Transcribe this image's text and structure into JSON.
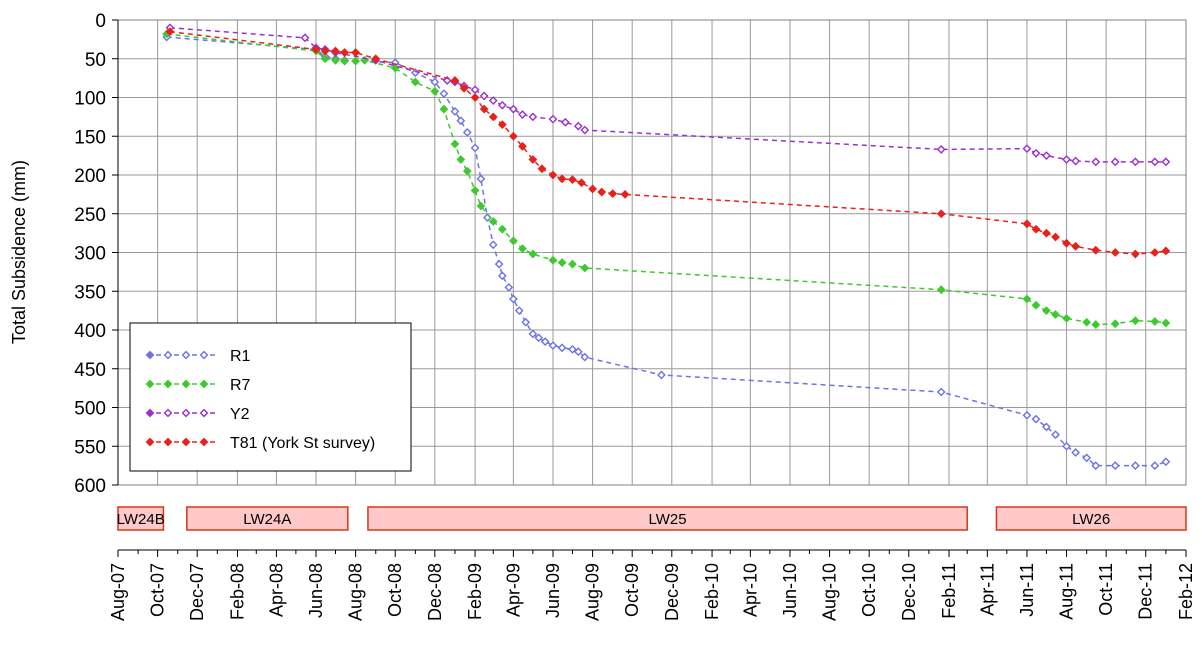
{
  "chart_data": {
    "type": "line",
    "ylabel": "Total Subsidence (mm)",
    "y_inverted": true,
    "ylim": [
      0,
      600
    ],
    "y_ticks": [
      "0",
      "50",
      "100",
      "150",
      "200",
      "250",
      "300",
      "350",
      "400",
      "450",
      "500",
      "550",
      "600"
    ],
    "x_range": [
      "2007-08-01",
      "2012-02-01"
    ],
    "x_ticks": [
      "Aug-07",
      "Oct-07",
      "Dec-07",
      "Feb-08",
      "Apr-08",
      "Jun-08",
      "Aug-08",
      "Oct-08",
      "Dec-08",
      "Feb-09",
      "Apr-09",
      "Jun-09",
      "Aug-09",
      "Oct-09",
      "Dec-09",
      "Feb-10",
      "Apr-10",
      "Jun-10",
      "Aug-10",
      "Oct-10",
      "Dec-10",
      "Feb-11",
      "Apr-11",
      "Jun-11",
      "Aug-11",
      "Oct-11",
      "Dec-11",
      "Feb-12"
    ],
    "grid": true,
    "legend_position": "lower-left",
    "series": [
      {
        "name": "R1",
        "color": "#6b73e6",
        "marker": "open-diamond",
        "points": [
          [
            "2007-10-15",
            22
          ],
          [
            "2008-06-01",
            38
          ],
          [
            "2008-06-15",
            47
          ],
          [
            "2008-07-01",
            50
          ],
          [
            "2008-07-15",
            52
          ],
          [
            "2008-10-01",
            55
          ],
          [
            "2008-11-01",
            68
          ],
          [
            "2008-12-01",
            80
          ],
          [
            "2008-12-15",
            95
          ],
          [
            "2009-01-01",
            118
          ],
          [
            "2009-01-10",
            130
          ],
          [
            "2009-01-20",
            145
          ],
          [
            "2009-02-01",
            165
          ],
          [
            "2009-02-10",
            205
          ],
          [
            "2009-02-20",
            255
          ],
          [
            "2009-03-01",
            290
          ],
          [
            "2009-03-10",
            315
          ],
          [
            "2009-03-15",
            330
          ],
          [
            "2009-03-25",
            345
          ],
          [
            "2009-04-01",
            360
          ],
          [
            "2009-04-10",
            375
          ],
          [
            "2009-04-20",
            390
          ],
          [
            "2009-05-01",
            405
          ],
          [
            "2009-05-10",
            410
          ],
          [
            "2009-05-20",
            415
          ],
          [
            "2009-06-01",
            420
          ],
          [
            "2009-06-15",
            423
          ],
          [
            "2009-07-01",
            425
          ],
          [
            "2009-07-10",
            428
          ],
          [
            "2009-07-20",
            435
          ],
          [
            "2009-11-15",
            458
          ],
          [
            "2011-01-20",
            480
          ],
          [
            "2011-06-01",
            510
          ],
          [
            "2011-06-15",
            515
          ],
          [
            "2011-07-01",
            525
          ],
          [
            "2011-07-15",
            535
          ],
          [
            "2011-08-01",
            550
          ],
          [
            "2011-08-15",
            558
          ],
          [
            "2011-09-01",
            565
          ],
          [
            "2011-09-15",
            575
          ],
          [
            "2011-10-15",
            575
          ],
          [
            "2011-11-15",
            575
          ],
          [
            "2011-12-15",
            575
          ],
          [
            "2012-01-01",
            570
          ]
        ]
      },
      {
        "name": "R7",
        "color": "#3ec92f",
        "marker": "diamond",
        "points": [
          [
            "2007-10-15",
            18
          ],
          [
            "2008-06-01",
            40
          ],
          [
            "2008-06-15",
            50
          ],
          [
            "2008-07-01",
            52
          ],
          [
            "2008-07-15",
            53
          ],
          [
            "2008-08-01",
            53
          ],
          [
            "2008-08-15",
            52
          ],
          [
            "2008-10-01",
            62
          ],
          [
            "2008-11-01",
            80
          ],
          [
            "2008-12-01",
            92
          ],
          [
            "2008-12-15",
            115
          ],
          [
            "2009-01-01",
            160
          ],
          [
            "2009-01-10",
            180
          ],
          [
            "2009-01-20",
            195
          ],
          [
            "2009-02-01",
            220
          ],
          [
            "2009-02-10",
            240
          ],
          [
            "2009-03-01",
            260
          ],
          [
            "2009-03-15",
            270
          ],
          [
            "2009-04-01",
            285
          ],
          [
            "2009-04-15",
            295
          ],
          [
            "2009-05-01",
            302
          ],
          [
            "2009-06-01",
            310
          ],
          [
            "2009-06-15",
            313
          ],
          [
            "2009-07-01",
            315
          ],
          [
            "2009-07-20",
            320
          ],
          [
            "2011-01-20",
            348
          ],
          [
            "2011-06-01",
            360
          ],
          [
            "2011-06-15",
            368
          ],
          [
            "2011-07-01",
            375
          ],
          [
            "2011-07-15",
            380
          ],
          [
            "2011-08-01",
            385
          ],
          [
            "2011-09-01",
            390
          ],
          [
            "2011-09-15",
            393
          ],
          [
            "2011-10-15",
            392
          ],
          [
            "2011-11-15",
            388
          ],
          [
            "2011-12-15",
            389
          ],
          [
            "2012-01-01",
            391
          ]
        ]
      },
      {
        "name": "Y2",
        "color": "#9b30d0",
        "marker": "open-diamond",
        "points": [
          [
            "2007-10-20",
            10
          ],
          [
            "2008-05-15",
            23
          ],
          [
            "2008-06-01",
            36
          ],
          [
            "2008-06-15",
            38
          ],
          [
            "2008-07-01",
            42
          ],
          [
            "2008-09-01",
            52
          ],
          [
            "2008-12-20",
            78
          ],
          [
            "2009-01-01",
            80
          ],
          [
            "2009-01-15",
            85
          ],
          [
            "2009-02-01",
            90
          ],
          [
            "2009-02-15",
            98
          ],
          [
            "2009-03-01",
            104
          ],
          [
            "2009-03-15",
            110
          ],
          [
            "2009-04-01",
            115
          ],
          [
            "2009-04-15",
            122
          ],
          [
            "2009-05-01",
            125
          ],
          [
            "2009-06-01",
            128
          ],
          [
            "2009-06-20",
            132
          ],
          [
            "2009-07-10",
            137
          ],
          [
            "2009-07-20",
            142
          ],
          [
            "2011-01-20",
            167
          ],
          [
            "2011-06-01",
            166
          ],
          [
            "2011-06-15",
            172
          ],
          [
            "2011-07-01",
            175
          ],
          [
            "2011-08-01",
            180
          ],
          [
            "2011-08-15",
            182
          ],
          [
            "2011-09-15",
            183
          ],
          [
            "2011-10-15",
            183
          ],
          [
            "2011-11-15",
            183
          ],
          [
            "2011-12-15",
            183
          ],
          [
            "2012-01-01",
            183
          ]
        ]
      },
      {
        "name": "T81 (York St survey)",
        "color": "#e8221b",
        "marker": "diamond",
        "points": [
          [
            "2007-10-20",
            15
          ],
          [
            "2008-06-01",
            38
          ],
          [
            "2008-06-15",
            40
          ],
          [
            "2008-07-01",
            40
          ],
          [
            "2008-07-15",
            42
          ],
          [
            "2008-08-01",
            42
          ],
          [
            "2008-09-01",
            50
          ],
          [
            "2009-01-01",
            78
          ],
          [
            "2009-01-15",
            88
          ],
          [
            "2009-02-01",
            100
          ],
          [
            "2009-02-15",
            115
          ],
          [
            "2009-03-01",
            125
          ],
          [
            "2009-03-15",
            135
          ],
          [
            "2009-04-01",
            150
          ],
          [
            "2009-04-15",
            163
          ],
          [
            "2009-05-01",
            180
          ],
          [
            "2009-05-15",
            192
          ],
          [
            "2009-06-01",
            200
          ],
          [
            "2009-06-15",
            205
          ],
          [
            "2009-07-01",
            206
          ],
          [
            "2009-07-15",
            210
          ],
          [
            "2009-08-01",
            218
          ],
          [
            "2009-08-15",
            222
          ],
          [
            "2009-09-01",
            224
          ],
          [
            "2009-09-20",
            225
          ],
          [
            "2011-01-20",
            250
          ],
          [
            "2011-06-01",
            263
          ],
          [
            "2011-06-15",
            270
          ],
          [
            "2011-07-01",
            275
          ],
          [
            "2011-07-15",
            280
          ],
          [
            "2011-08-01",
            288
          ],
          [
            "2011-08-15",
            292
          ],
          [
            "2011-09-15",
            297
          ],
          [
            "2011-10-15",
            300
          ],
          [
            "2011-11-15",
            302
          ],
          [
            "2011-12-15",
            300
          ],
          [
            "2012-01-01",
            298
          ]
        ]
      }
    ],
    "panels": [
      {
        "label": "LW24B",
        "start": "2007-08-01",
        "end": "2007-10-10"
      },
      {
        "label": "LW24A",
        "start": "2007-11-15",
        "end": "2008-07-20"
      },
      {
        "label": "LW25",
        "start": "2008-08-20",
        "end": "2011-03-01"
      },
      {
        "label": "LW26",
        "start": "2011-04-15",
        "end": "2012-02-01"
      }
    ]
  }
}
